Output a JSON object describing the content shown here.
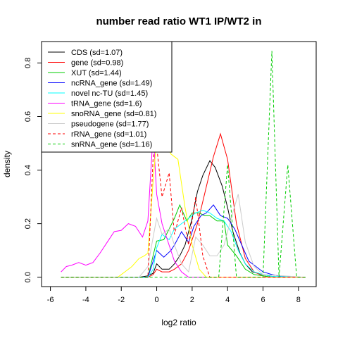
{
  "chart_data": {
    "type": "line",
    "title": "number read ratio WT1 IP/WT2 in",
    "xlabel": "log2 ratio",
    "ylabel": "density",
    "xlim": [
      -6.5,
      9.0
    ],
    "ylim": [
      -0.035,
      0.88
    ],
    "xticks": [
      -6,
      -4,
      -2,
      0,
      2,
      4,
      6,
      8
    ],
    "yticks": [
      0.0,
      0.2,
      0.4,
      0.6,
      0.8
    ],
    "xtick_labels": [
      "-6",
      "-4",
      "-2",
      "0",
      "2",
      "4",
      "6",
      "8"
    ],
    "ytick_labels": [
      "0.0",
      "0.2",
      "0.4",
      "0.6",
      "0.8"
    ],
    "grid": false,
    "legend_position": "top-left",
    "series": [
      {
        "name": "CDS (sd=1.07)",
        "color": "#000000",
        "dash": "solid",
        "x": [
          -5.4,
          -1.0,
          -0.5,
          -0.2,
          0.0,
          0.3,
          0.7,
          1.0,
          1.3,
          1.6,
          2.0,
          2.3,
          2.6,
          3.0,
          3.3,
          3.7,
          4.0,
          4.3,
          4.7,
          5.0,
          5.4,
          6.0,
          6.5,
          7.0,
          8.4
        ],
        "y": [
          0.0,
          0.0,
          0.005,
          0.015,
          0.05,
          0.03,
          0.03,
          0.05,
          0.08,
          0.12,
          0.22,
          0.32,
          0.38,
          0.435,
          0.41,
          0.34,
          0.26,
          0.17,
          0.09,
          0.05,
          0.02,
          0.01,
          0.003,
          0.0,
          0.0
        ]
      },
      {
        "name": "gene (sd=0.98)",
        "color": "#ff0000",
        "dash": "solid",
        "x": [
          -5.4,
          -0.5,
          -0.2,
          0.0,
          0.3,
          0.7,
          1.0,
          1.4,
          1.8,
          2.3,
          2.7,
          3.2,
          3.6,
          4.0,
          4.5,
          5.0,
          5.5,
          6.0,
          6.5,
          8.4
        ],
        "y": [
          0.0,
          0.0,
          0.01,
          0.03,
          0.02,
          0.02,
          0.03,
          0.05,
          0.1,
          0.2,
          0.31,
          0.45,
          0.535,
          0.44,
          0.2,
          0.07,
          0.02,
          0.005,
          0.0,
          0.0
        ]
      },
      {
        "name": "XUT (sd=1.44)",
        "color": "#00cc00",
        "dash": "solid",
        "x": [
          -5.4,
          -0.5,
          0.0,
          0.4,
          0.7,
          1.0,
          1.3,
          1.7,
          2.0,
          2.4,
          2.7,
          3.0,
          3.4,
          3.8,
          4.0,
          4.5,
          5.0,
          5.5,
          6.0,
          6.5,
          8.4
        ],
        "y": [
          0.0,
          0.0,
          0.135,
          0.14,
          0.18,
          0.22,
          0.27,
          0.21,
          0.24,
          0.24,
          0.23,
          0.23,
          0.21,
          0.21,
          0.12,
          0.08,
          0.03,
          0.01,
          0.005,
          0.0,
          0.0
        ]
      },
      {
        "name": "ncRNA_gene (sd=1.49)",
        "color": "#0000ff",
        "dash": "solid",
        "x": [
          -5.4,
          -0.5,
          0.0,
          0.4,
          0.8,
          1.0,
          1.4,
          1.8,
          2.1,
          2.5,
          2.8,
          3.2,
          3.6,
          4.0,
          4.4,
          4.8,
          5.2,
          5.6,
          6.0,
          6.5,
          7.0,
          8.4
        ],
        "y": [
          0.0,
          0.0,
          0.1,
          0.075,
          0.1,
          0.12,
          0.17,
          0.13,
          0.19,
          0.23,
          0.24,
          0.27,
          0.23,
          0.22,
          0.18,
          0.12,
          0.06,
          0.04,
          0.02,
          0.01,
          0.003,
          0.0
        ]
      },
      {
        "name": "novel nc-TU (sd=1.45)",
        "color": "#00ffff",
        "dash": "solid",
        "x": [
          -5.4,
          -0.5,
          -0.2,
          0.0,
          0.3,
          0.7,
          1.0,
          1.4,
          1.8,
          2.2,
          2.6,
          3.0,
          3.4,
          3.8,
          4.2,
          4.6,
          5.0,
          5.5,
          6.0,
          6.5,
          8.4
        ],
        "y": [
          0.0,
          0.0,
          0.03,
          0.11,
          0.16,
          0.14,
          0.18,
          0.2,
          0.22,
          0.24,
          0.25,
          0.24,
          0.22,
          0.21,
          0.17,
          0.1,
          0.05,
          0.02,
          0.01,
          0.003,
          0.0
        ]
      },
      {
        "name": "tRNA_gene (sd=1.6)",
        "color": "#ff00ff",
        "dash": "solid",
        "x": [
          -5.4,
          -5.1,
          -4.8,
          -4.4,
          -4.0,
          -3.6,
          -3.2,
          -2.8,
          -2.4,
          -2.0,
          -1.6,
          -1.2,
          -0.8,
          -0.5,
          -0.2,
          0.0,
          0.3,
          0.6,
          1.0,
          1.4,
          1.8,
          8.4
        ],
        "y": [
          0.02,
          0.04,
          0.045,
          0.055,
          0.045,
          0.055,
          0.09,
          0.13,
          0.17,
          0.175,
          0.2,
          0.19,
          0.15,
          0.21,
          0.54,
          0.31,
          0.2,
          0.14,
          0.06,
          0.02,
          0.0,
          0.0
        ]
      },
      {
        "name": "snoRNA_gene (sd=0.81)",
        "color": "#ffff00",
        "dash": "solid",
        "x": [
          -5.4,
          -2.2,
          -1.8,
          -1.4,
          -1.0,
          -0.7,
          -0.5,
          -0.2,
          0.0,
          0.2,
          0.5,
          0.8,
          1.2,
          1.6,
          2.0,
          2.4,
          2.8,
          8.4
        ],
        "y": [
          0.0,
          0.0,
          0.02,
          0.04,
          0.07,
          0.08,
          0.09,
          0.36,
          0.52,
          0.52,
          0.51,
          0.46,
          0.44,
          0.26,
          0.12,
          0.03,
          0.0,
          0.0
        ]
      },
      {
        "name": "pseudogene (sd=1.77)",
        "color": "#cccccc",
        "dash": "solid",
        "x": [
          -5.4,
          -1.0,
          -0.5,
          -0.2,
          0.0,
          0.3,
          0.7,
          1.0,
          1.4,
          1.8,
          2.2,
          2.6,
          3.0,
          3.4,
          3.8,
          4.2,
          4.6,
          5.0,
          5.5,
          6.0,
          8.4
        ],
        "y": [
          0.0,
          0.0,
          0.04,
          0.15,
          0.22,
          0.16,
          0.18,
          0.12,
          0.05,
          0.02,
          0.15,
          0.12,
          0.08,
          0.08,
          0.12,
          0.22,
          0.31,
          0.13,
          0.04,
          0.01,
          0.0
        ]
      },
      {
        "name": "rRNA_gene (sd=1.01)",
        "color": "#ff0000",
        "dash": "dashed",
        "x": [
          -5.4,
          -0.5,
          -0.2,
          0.0,
          0.3,
          0.7,
          1.0,
          1.4,
          1.8,
          2.2,
          2.6,
          3.0,
          8.4
        ],
        "y": [
          0.0,
          0.0,
          0.45,
          0.49,
          0.3,
          0.39,
          0.16,
          0.26,
          0.12,
          0.3,
          0.08,
          0.0,
          0.0
        ]
      },
      {
        "name": "snRNA_gene (sd=1.16)",
        "color": "#00cc00",
        "dash": "dashed",
        "x": [
          -5.4,
          3.5,
          4.0,
          4.5,
          5.0,
          6.0,
          6.5,
          6.9,
          7.4,
          7.9,
          8.4
        ],
        "y": [
          0.0,
          0.0,
          0.42,
          0.0,
          0.0,
          0.0,
          0.845,
          0.0,
          0.42,
          0.0,
          0.0
        ]
      }
    ]
  }
}
